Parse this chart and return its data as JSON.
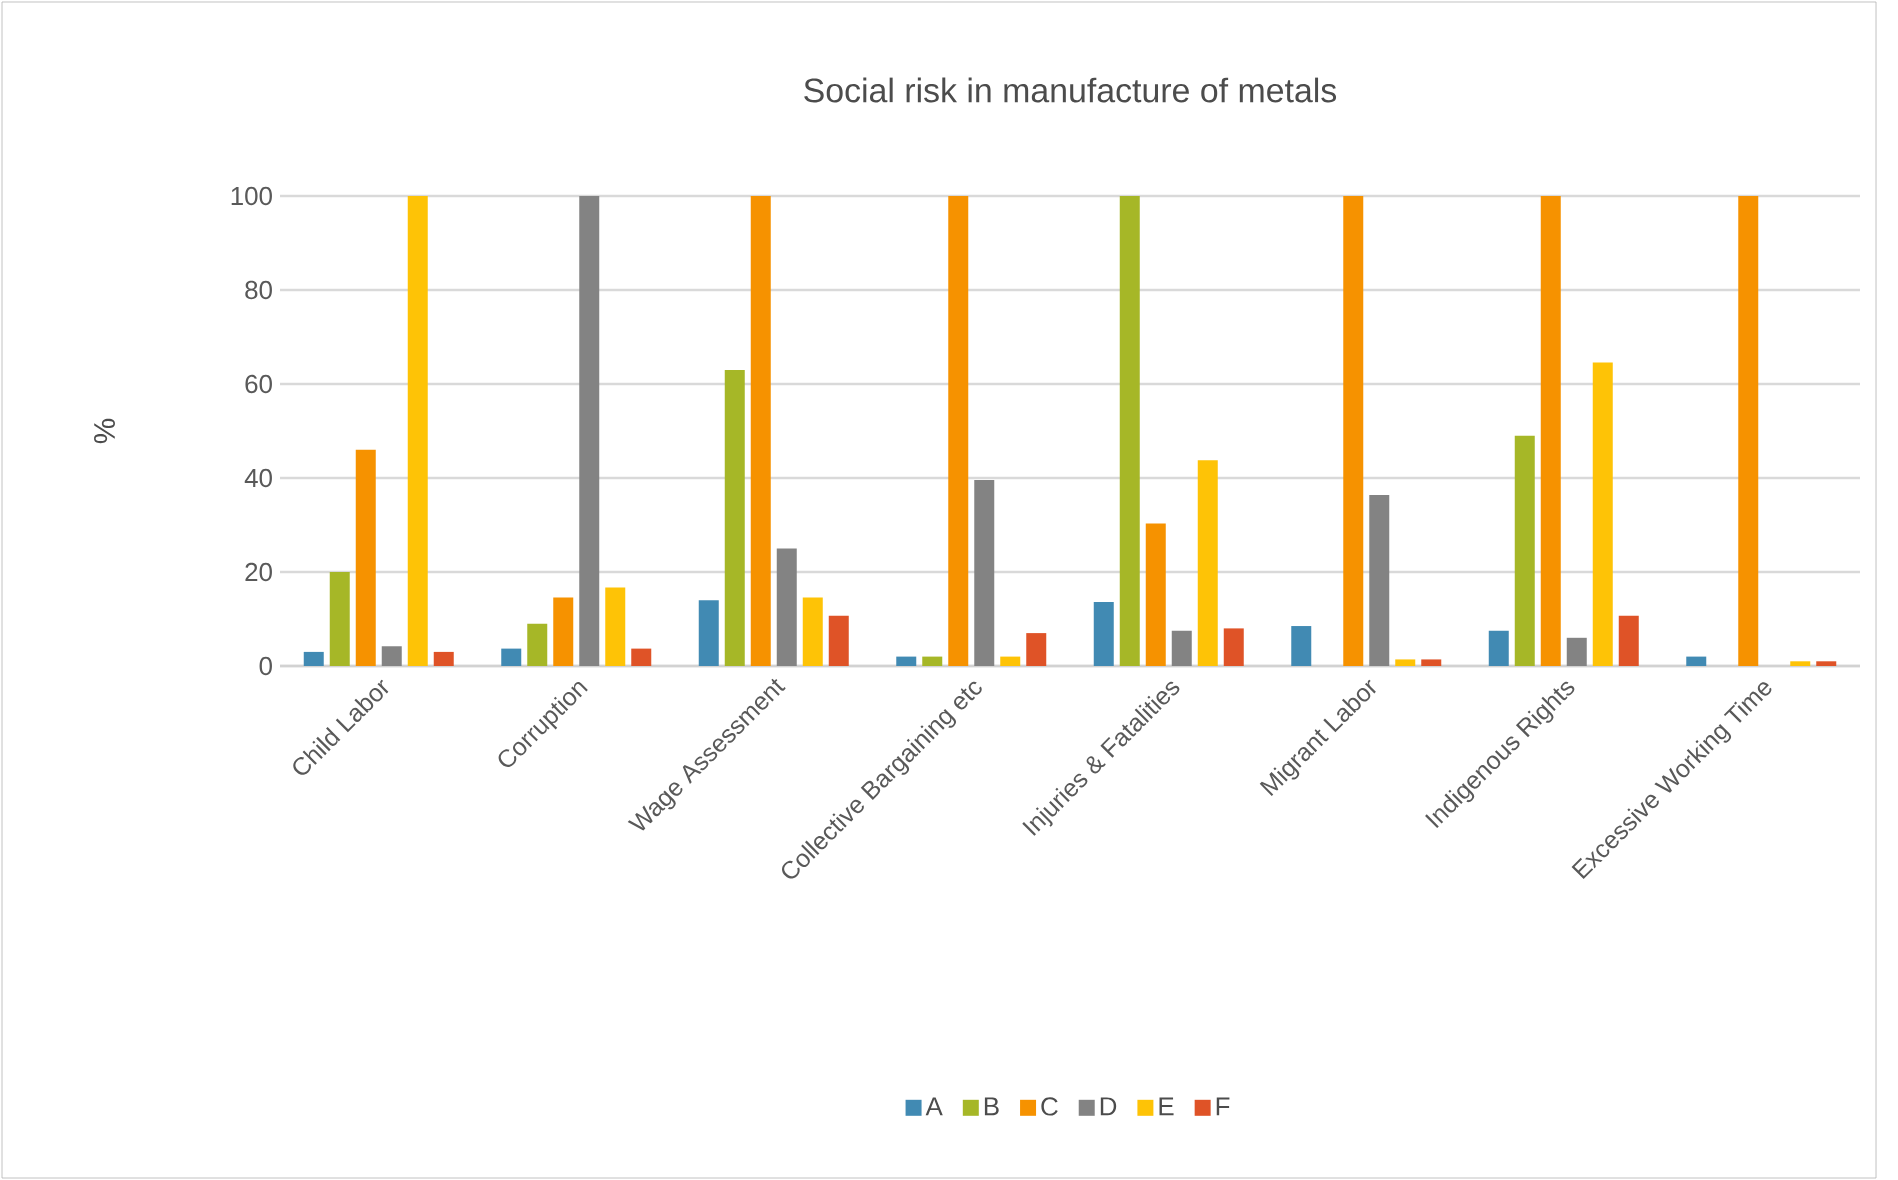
{
  "chart_data": {
    "type": "bar",
    "title": "Social risk in manufacture of metals",
    "ylabel": "%",
    "categories": [
      "Child Labor",
      "Corruption",
      "Wage Assessment",
      "Collective Bargaining etc",
      "Injuries & Fatalities",
      "Migrant Labor",
      "Indigenous Rights",
      "Excessive Working Time"
    ],
    "series": [
      {
        "name": "A",
        "color": "#418ab3",
        "values": [
          3,
          3.7,
          14,
          2,
          13.6,
          8.5,
          7.5,
          2
        ]
      },
      {
        "name": "B",
        "color": "#a6b727",
        "values": [
          20,
          9,
          63,
          2,
          100,
          0,
          49,
          0
        ]
      },
      {
        "name": "C",
        "color": "#f69200",
        "values": [
          46,
          14.6,
          100,
          100,
          30.3,
          100,
          100,
          100
        ]
      },
      {
        "name": "D",
        "color": "#838383",
        "values": [
          4.2,
          100,
          25,
          39.6,
          7.5,
          36.4,
          6,
          0
        ]
      },
      {
        "name": "E",
        "color": "#fec306",
        "values": [
          100,
          16.7,
          14.6,
          2,
          43.8,
          1.4,
          64.6,
          1
        ]
      },
      {
        "name": "F",
        "color": "#df5327",
        "values": [
          3,
          3.7,
          10.7,
          7,
          8,
          1.4,
          10.7,
          1
        ]
      }
    ],
    "ylim": [
      0,
      100
    ],
    "yticks": [
      0,
      20,
      40,
      60,
      80,
      100
    ],
    "grid": "y",
    "legend": "bottom"
  }
}
